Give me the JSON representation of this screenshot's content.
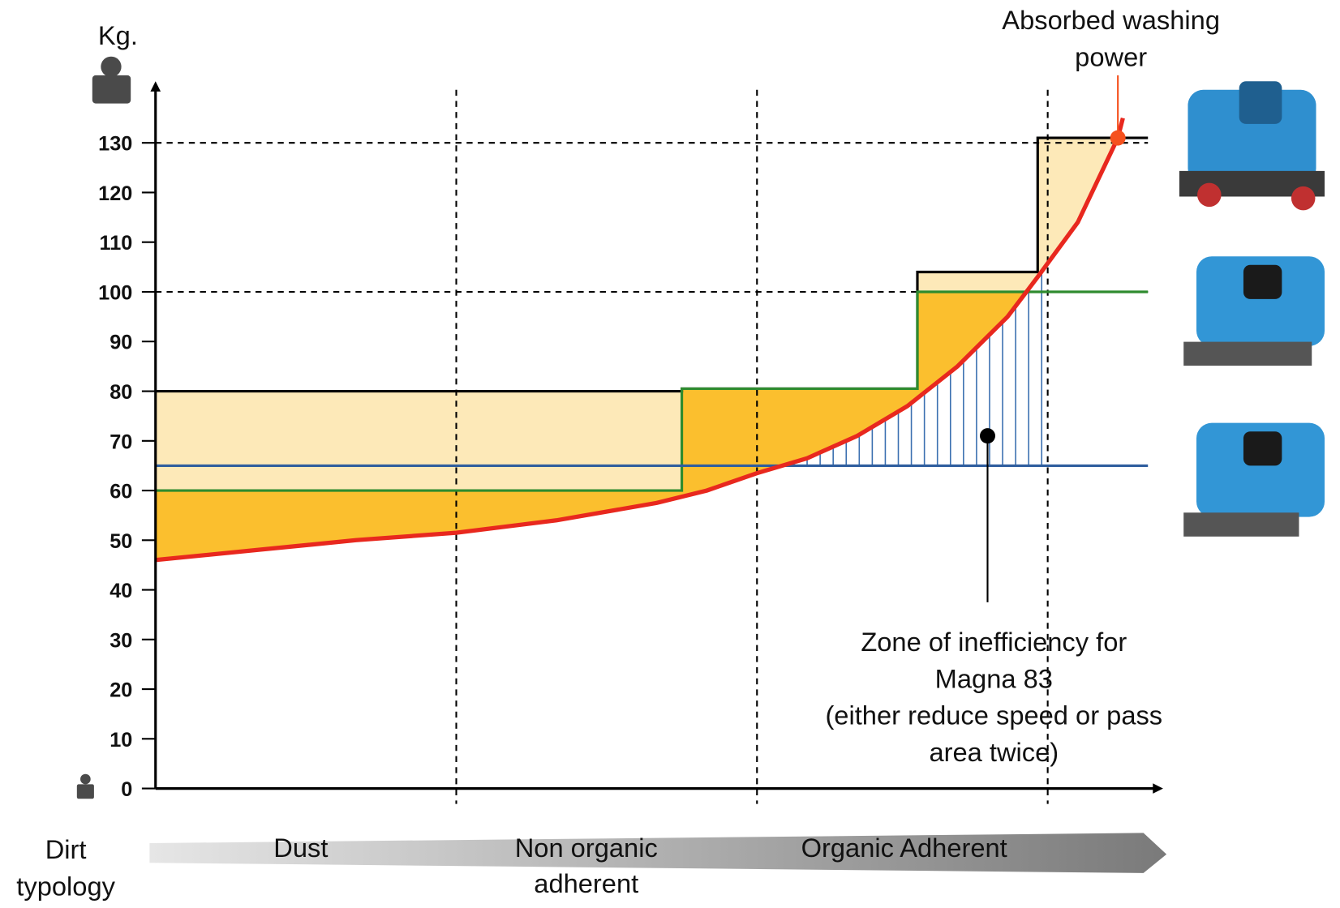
{
  "chart_data": {
    "type": "line",
    "y_label": "Kg.",
    "power_label": [
      "Absorbed washing",
      "power"
    ],
    "zone_label": [
      "Zone of inefficiency for",
      "Magna 83",
      "(either reduce speed or pass",
      "area twice)"
    ],
    "x_label": [
      "Dirt",
      "typology"
    ],
    "dirt_types": [
      [
        "Dust"
      ],
      [
        "Non organic",
        "adherent"
      ],
      [
        "Organic Adherent"
      ]
    ],
    "xlim": [
      0,
      100
    ],
    "ylim": [
      0,
      142.4
    ],
    "yticks": [
      0,
      10,
      20,
      30,
      40,
      50,
      60,
      70,
      80,
      90,
      100,
      110,
      120,
      130
    ],
    "dividers": [
      30,
      60,
      89
    ],
    "reference_lines": [
      130,
      100
    ],
    "series": [
      {
        "color": "#000000",
        "shape": "step",
        "x": [
          0,
          52.5,
          52.5,
          76,
          76,
          88,
          88,
          99
        ],
        "values": [
          80,
          80,
          80.5,
          80.5,
          104,
          104,
          131,
          131
        ]
      },
      {
        "color": "#2e8b2e",
        "shape": "step",
        "x": [
          0,
          52.5,
          52.5,
          76,
          76,
          99
        ],
        "values": [
          60,
          60,
          80.5,
          80.5,
          100,
          100
        ]
      },
      {
        "color": "#2f5e9e",
        "shape": "flat",
        "x": [
          0,
          99
        ],
        "values": [
          65,
          65
        ]
      },
      {
        "color": "#e8281e",
        "shape": "curve",
        "x": [
          0,
          10,
          20,
          30,
          40,
          50,
          55,
          60,
          65,
          70,
          75,
          80,
          85,
          88,
          92,
          96,
          96.5
        ],
        "values": [
          46,
          48,
          50,
          51.5,
          54,
          57.5,
          60,
          63.5,
          66.5,
          71,
          77,
          85,
          95,
          103,
          114,
          131,
          135
        ]
      }
    ],
    "fill_colors": [
      "#fde9b8",
      "#fbbf2e"
    ],
    "hatch_color": "#3a6fb0",
    "marker": {
      "x": 96,
      "value": 131,
      "color": "#f5511e"
    },
    "zone_marker": {
      "x": 83,
      "value": 71
    }
  }
}
